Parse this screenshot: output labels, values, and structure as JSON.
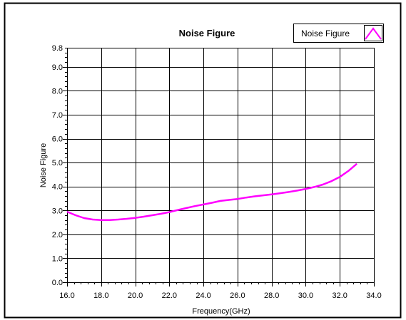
{
  "chart_data": {
    "type": "line",
    "title": "Noise Figure",
    "xlabel": "Frequency(GHz)",
    "ylabel": "Noise Figure",
    "xlim": [
      16.0,
      34.0
    ],
    "ylim": [
      0.0,
      9.8
    ],
    "x_ticks": [
      "16.0",
      "18.0",
      "20.0",
      "22.0",
      "24.0",
      "26.0",
      "28.0",
      "30.0",
      "32.0",
      "34.0"
    ],
    "y_ticks": [
      "0.0",
      "1.0",
      "2.0",
      "3.0",
      "4.0",
      "5.0",
      "6.0",
      "7.0",
      "8.0",
      "9.0",
      "9.8"
    ],
    "grid": true,
    "legend": "top-right",
    "series": [
      {
        "name": "Noise Figure",
        "color": "#ff00ff",
        "x": [
          16.0,
          16.5,
          17.0,
          17.5,
          18.0,
          18.5,
          19.0,
          19.5,
          20.0,
          20.5,
          21.0,
          21.5,
          22.0,
          22.5,
          23.0,
          23.5,
          24.0,
          24.5,
          25.0,
          25.5,
          26.0,
          26.5,
          27.0,
          27.5,
          28.0,
          28.5,
          29.0,
          29.5,
          30.0,
          30.5,
          31.0,
          31.5,
          32.0,
          32.5,
          33.0
        ],
        "y": [
          2.95,
          2.8,
          2.68,
          2.62,
          2.6,
          2.6,
          2.62,
          2.65,
          2.69,
          2.74,
          2.8,
          2.86,
          2.93,
          3.02,
          3.1,
          3.18,
          3.25,
          3.32,
          3.4,
          3.44,
          3.48,
          3.54,
          3.59,
          3.63,
          3.67,
          3.72,
          3.77,
          3.83,
          3.9,
          3.98,
          4.08,
          4.22,
          4.4,
          4.65,
          4.95
        ]
      }
    ]
  }
}
